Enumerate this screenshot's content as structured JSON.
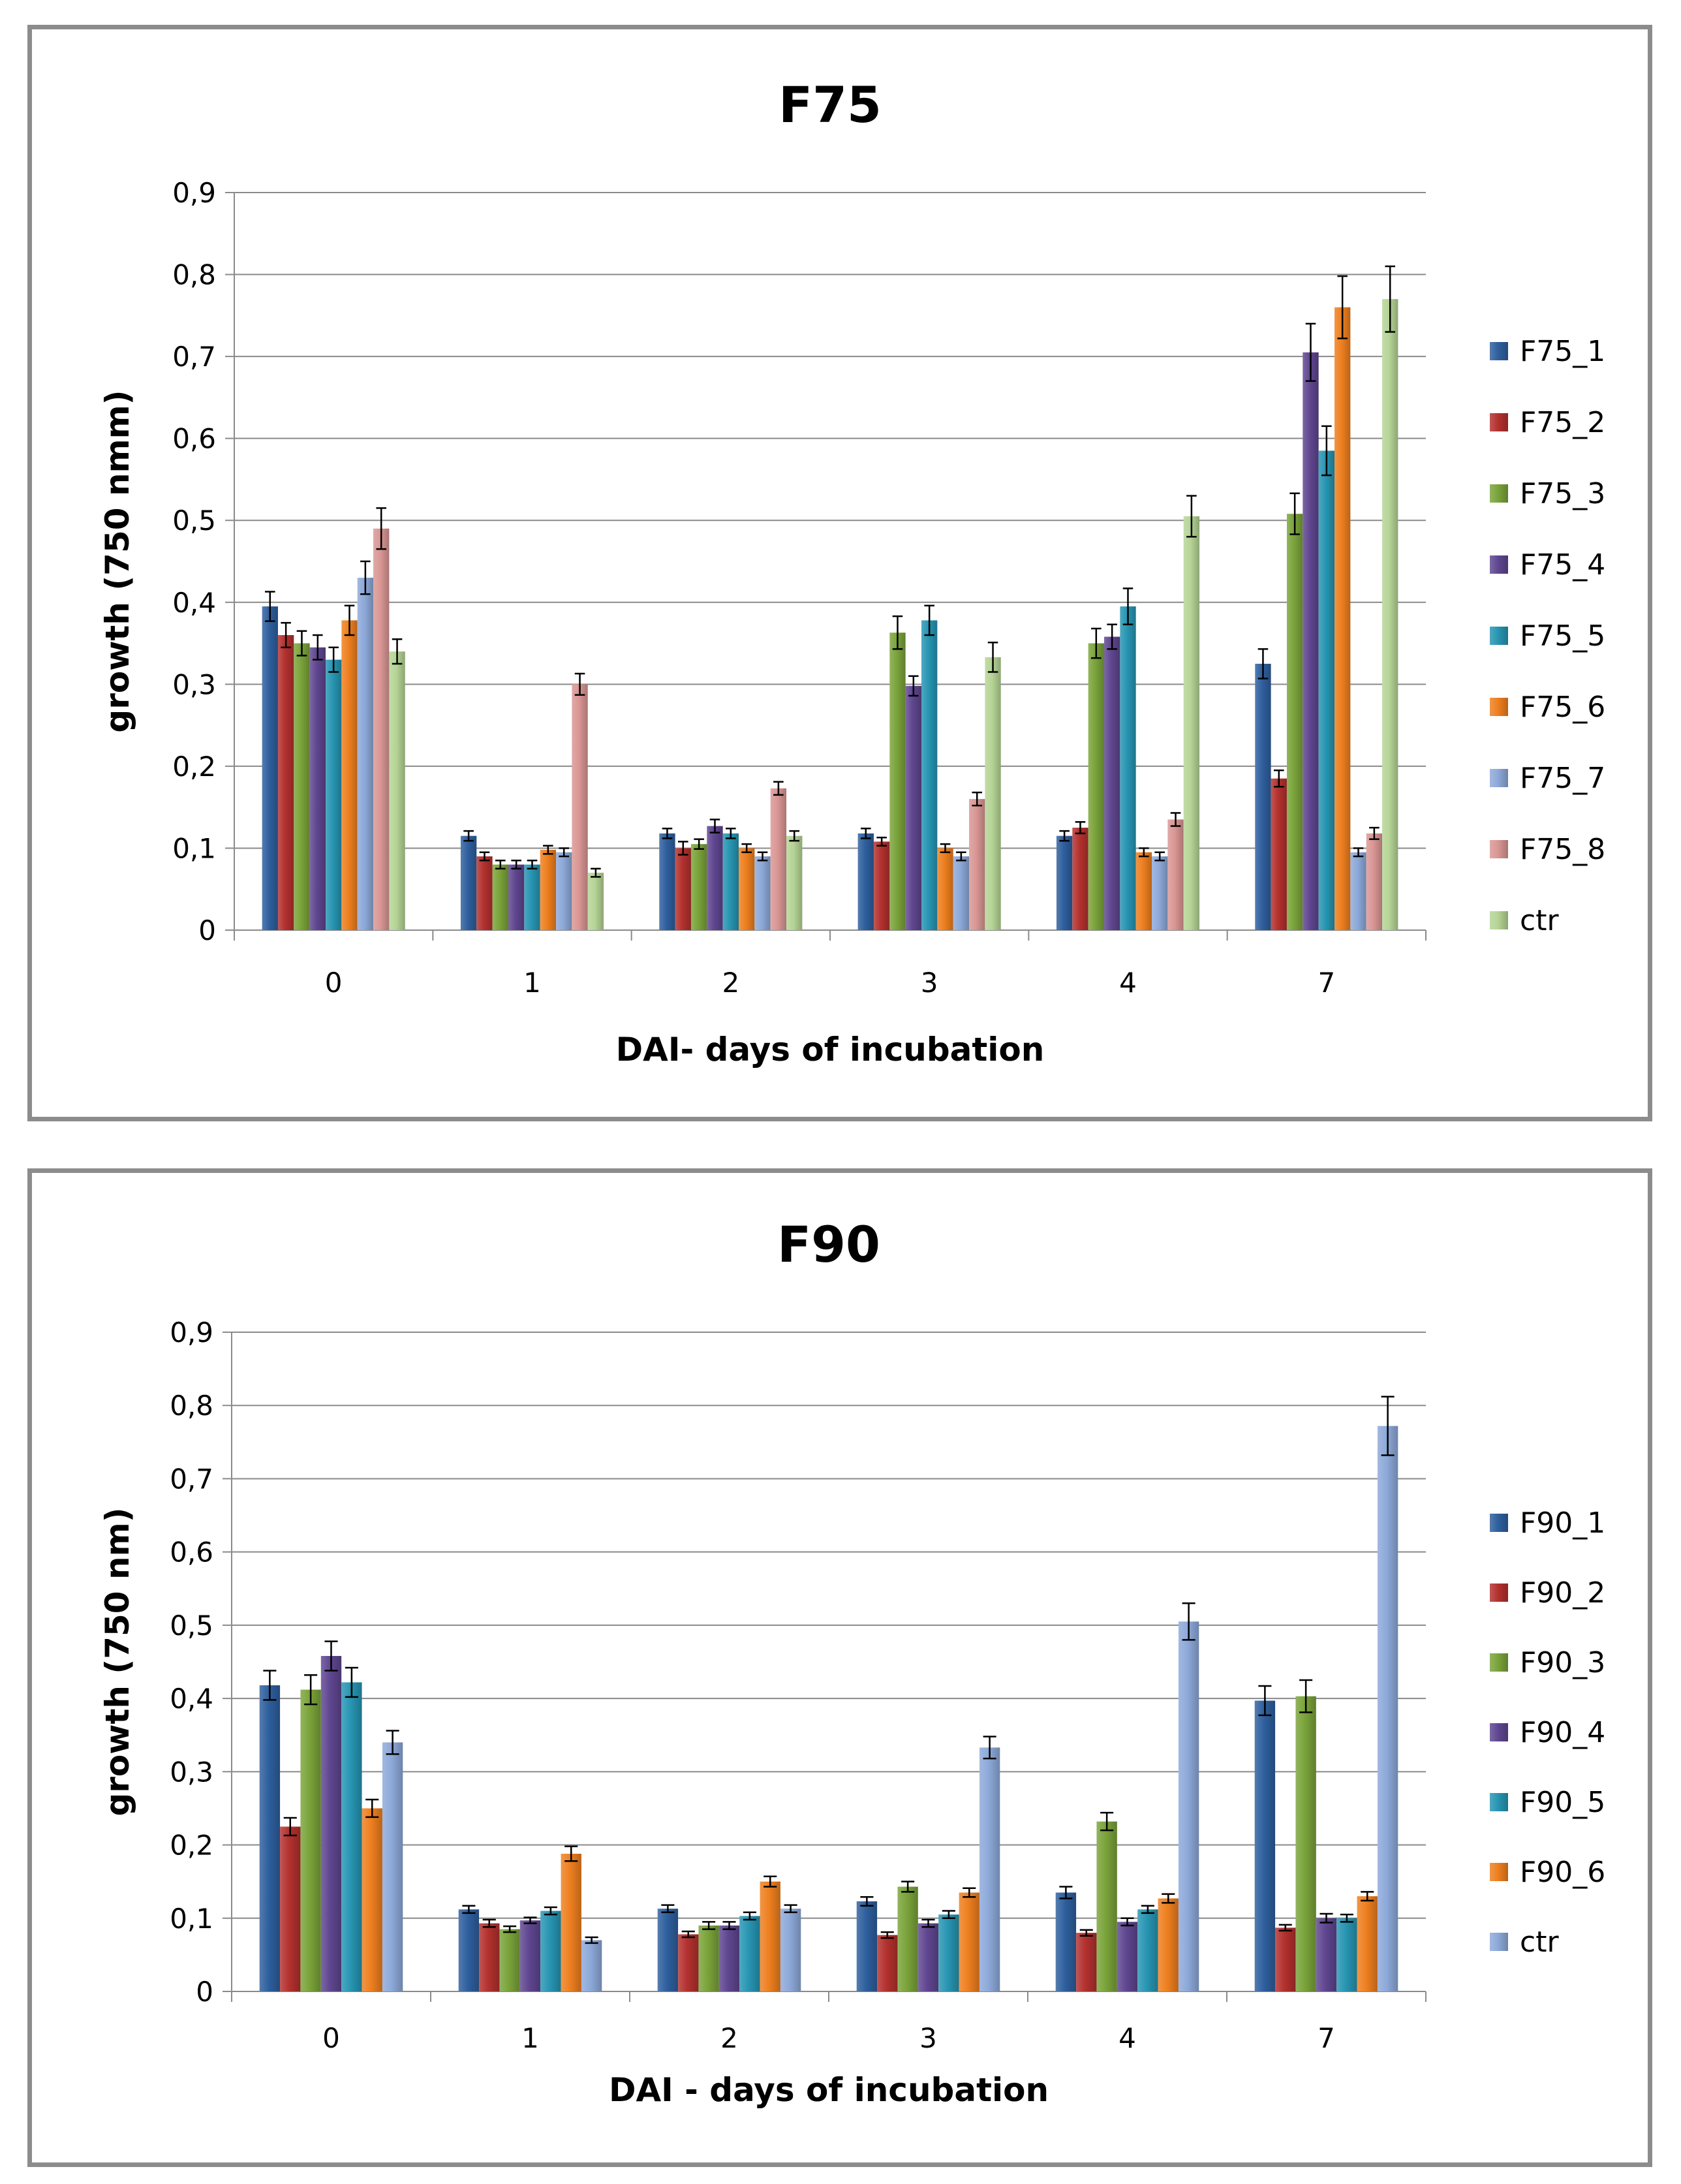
{
  "chart_data": [
    {
      "type": "bar",
      "title": "F75",
      "xlabel": "DAI- days of incubation",
      "ylabel": "growth (750 nmm)",
      "ylim": [
        0,
        0.9
      ],
      "yticks": [
        0,
        0.1,
        0.2,
        0.3,
        0.4,
        0.5,
        0.6,
        0.7,
        0.8,
        0.9
      ],
      "ytick_labels": [
        "0",
        "0,1",
        "0,2",
        "0,3",
        "0,4",
        "0,5",
        "0,6",
        "0,7",
        "0,8",
        "0,9"
      ],
      "grid": true,
      "error_bars": true,
      "legend_position": "right",
      "categories": [
        "0",
        "1",
        "2",
        "3",
        "4",
        "7"
      ],
      "series": [
        {
          "name": "F75_1",
          "color": "#2e5f9e",
          "values": [
            0.395,
            0.115,
            0.118,
            0.118,
            0.115,
            0.325
          ],
          "errors": [
            0.018,
            0.006,
            0.006,
            0.006,
            0.006,
            0.018
          ]
        },
        {
          "name": "F75_2",
          "color": "#b3312e",
          "values": [
            0.36,
            0.09,
            0.1,
            0.108,
            0.125,
            0.185
          ],
          "errors": [
            0.015,
            0.005,
            0.008,
            0.005,
            0.007,
            0.01
          ]
        },
        {
          "name": "F75_3",
          "color": "#7aa33a",
          "values": [
            0.35,
            0.08,
            0.105,
            0.363,
            0.35,
            0.508
          ],
          "errors": [
            0.015,
            0.005,
            0.006,
            0.02,
            0.018,
            0.025
          ]
        },
        {
          "name": "F75_4",
          "color": "#5f4690",
          "values": [
            0.345,
            0.08,
            0.127,
            0.298,
            0.358,
            0.705
          ],
          "errors": [
            0.015,
            0.005,
            0.008,
            0.012,
            0.015,
            0.035
          ]
        },
        {
          "name": "F75_5",
          "color": "#2795b2",
          "values": [
            0.33,
            0.08,
            0.118,
            0.378,
            0.395,
            0.585
          ],
          "errors": [
            0.015,
            0.005,
            0.006,
            0.018,
            0.022,
            0.03
          ]
        },
        {
          "name": "F75_6",
          "color": "#ee7f1f",
          "values": [
            0.378,
            0.098,
            0.1,
            0.1,
            0.095,
            0.76
          ],
          "errors": [
            0.018,
            0.005,
            0.005,
            0.005,
            0.005,
            0.038
          ]
        },
        {
          "name": "F75_7",
          "color": "#8da9d9",
          "values": [
            0.43,
            0.095,
            0.09,
            0.09,
            0.09,
            0.095
          ],
          "errors": [
            0.02,
            0.005,
            0.005,
            0.005,
            0.005,
            0.005
          ]
        },
        {
          "name": "F75_8",
          "color": "#d99694",
          "values": [
            0.49,
            0.3,
            0.173,
            0.16,
            0.135,
            0.118
          ],
          "errors": [
            0.025,
            0.013,
            0.008,
            0.008,
            0.008,
            0.007
          ]
        },
        {
          "name": "ctr",
          "color": "#b5d495",
          "values": [
            0.34,
            0.07,
            0.115,
            0.333,
            0.505,
            0.77
          ],
          "errors": [
            0.015,
            0.005,
            0.006,
            0.018,
            0.025,
            0.04
          ]
        }
      ]
    },
    {
      "type": "bar",
      "title": "F90",
      "xlabel": "DAI - days of incubation",
      "ylabel": "growth (750 nm)",
      "ylim": [
        0,
        0.9
      ],
      "yticks": [
        0,
        0.1,
        0.2,
        0.3,
        0.4,
        0.5,
        0.6,
        0.7,
        0.8,
        0.9
      ],
      "ytick_labels": [
        "0",
        "0,1",
        "0,2",
        "0,3",
        "0,4",
        "0,5",
        "0,6",
        "0,7",
        "0,8",
        "0,9"
      ],
      "grid": true,
      "error_bars": true,
      "legend_position": "right",
      "categories": [
        "0",
        "1",
        "2",
        "3",
        "4",
        "7"
      ],
      "series": [
        {
          "name": "F90_1",
          "color": "#2e5f9e",
          "values": [
            0.418,
            0.112,
            0.113,
            0.123,
            0.135,
            0.397
          ],
          "errors": [
            0.02,
            0.005,
            0.005,
            0.006,
            0.008,
            0.02
          ]
        },
        {
          "name": "F90_2",
          "color": "#b3312e",
          "values": [
            0.225,
            0.093,
            0.078,
            0.077,
            0.08,
            0.087
          ],
          "errors": [
            0.012,
            0.005,
            0.004,
            0.004,
            0.004,
            0.004
          ]
        },
        {
          "name": "F90_3",
          "color": "#7aa33a",
          "values": [
            0.412,
            0.085,
            0.09,
            0.143,
            0.232,
            0.403
          ],
          "errors": [
            0.02,
            0.004,
            0.005,
            0.007,
            0.012,
            0.022
          ]
        },
        {
          "name": "F90_4",
          "color": "#5f4690",
          "values": [
            0.458,
            0.097,
            0.09,
            0.093,
            0.095,
            0.1
          ],
          "errors": [
            0.02,
            0.004,
            0.005,
            0.005,
            0.005,
            0.006
          ]
        },
        {
          "name": "F90_5",
          "color": "#2795b2",
          "values": [
            0.422,
            0.11,
            0.103,
            0.105,
            0.112,
            0.1
          ],
          "errors": [
            0.02,
            0.005,
            0.005,
            0.005,
            0.005,
            0.005
          ]
        },
        {
          "name": "F90_6",
          "color": "#ee7f1f",
          "values": [
            0.25,
            0.188,
            0.15,
            0.135,
            0.127,
            0.13
          ],
          "errors": [
            0.012,
            0.01,
            0.007,
            0.006,
            0.006,
            0.006
          ]
        },
        {
          "name": "ctr",
          "color": "#8da9d9",
          "values": [
            0.34,
            0.07,
            0.113,
            0.333,
            0.505,
            0.772
          ],
          "errors": [
            0.016,
            0.004,
            0.005,
            0.015,
            0.025,
            0.04
          ]
        }
      ]
    }
  ]
}
